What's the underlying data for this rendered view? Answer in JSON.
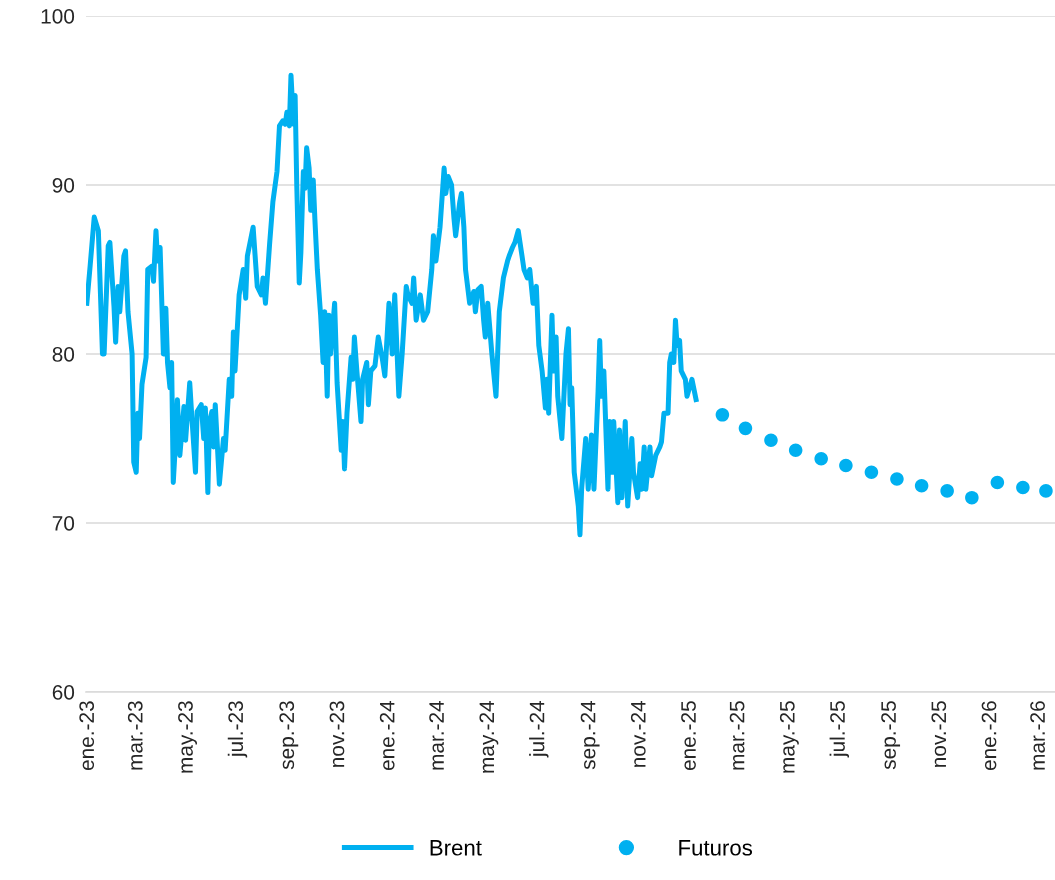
{
  "chart_data": {
    "type": "line",
    "xlim": [
      "2022-12-29",
      "2026-03-20"
    ],
    "ylim": [
      60,
      100
    ],
    "yticks": [
      60,
      70,
      80,
      90,
      100
    ],
    "xticks": [
      {
        "value": "2023-01-01",
        "label": "ene.-23"
      },
      {
        "value": "2023-03-01",
        "label": "mar.-23"
      },
      {
        "value": "2023-05-01",
        "label": "may.-23"
      },
      {
        "value": "2023-07-01",
        "label": "jul.-23"
      },
      {
        "value": "2023-09-01",
        "label": "sep.-23"
      },
      {
        "value": "2023-11-01",
        "label": "nov.-23"
      },
      {
        "value": "2024-01-01",
        "label": "ene.-24"
      },
      {
        "value": "2024-03-01",
        "label": "mar.-24"
      },
      {
        "value": "2024-05-01",
        "label": "may.-24"
      },
      {
        "value": "2024-07-01",
        "label": "jul.-24"
      },
      {
        "value": "2024-09-01",
        "label": "sep.-24"
      },
      {
        "value": "2024-11-01",
        "label": "nov.-24"
      },
      {
        "value": "2025-01-01",
        "label": "ene.-25"
      },
      {
        "value": "2025-03-01",
        "label": "mar.-25"
      },
      {
        "value": "2025-05-01",
        "label": "may.-25"
      },
      {
        "value": "2025-07-01",
        "label": "jul.-25"
      },
      {
        "value": "2025-09-01",
        "label": "sep.-25"
      },
      {
        "value": "2025-11-01",
        "label": "nov.-25"
      },
      {
        "value": "2026-01-01",
        "label": "ene.-26"
      },
      {
        "value": "2026-03-01",
        "label": "mar.-26"
      }
    ],
    "grid": "y",
    "legend": "bottom",
    "series": [
      {
        "name": "Brent",
        "color": "#00b0f0",
        "line_style": "solid",
        "marker": "none",
        "x": [
          "2022-12-30",
          "2023-01-03",
          "2023-01-08",
          "2023-01-13",
          "2023-01-18",
          "2023-01-20",
          "2023-01-25",
          "2023-01-27",
          "2023-02-01",
          "2023-02-03",
          "2023-02-06",
          "2023-02-08",
          "2023-02-13",
          "2023-02-15",
          "2023-02-18",
          "2023-02-23",
          "2023-02-25",
          "2023-02-28",
          "2023-03-02",
          "2023-03-04",
          "2023-03-07",
          "2023-03-12",
          "2023-03-14",
          "2023-03-19",
          "2023-03-21",
          "2023-03-24",
          "2023-03-26",
          "2023-03-29",
          "2023-04-02",
          "2023-04-05",
          "2023-04-07",
          "2023-04-10",
          "2023-04-12",
          "2023-04-14",
          "2023-04-17",
          "2023-04-19",
          "2023-04-22",
          "2023-04-27",
          "2023-04-29",
          "2023-05-04",
          "2023-05-06",
          "2023-05-11",
          "2023-05-13",
          "2023-05-18",
          "2023-05-21",
          "2023-05-23",
          "2023-05-26",
          "2023-05-28",
          "2023-05-31",
          "2023-06-02",
          "2023-06-04",
          "2023-06-09",
          "2023-06-14",
          "2023-06-16",
          "2023-06-21",
          "2023-06-24",
          "2023-06-26",
          "2023-06-28",
          "2023-07-03",
          "2023-07-08",
          "2023-07-11",
          "2023-07-13",
          "2023-07-20",
          "2023-07-25",
          "2023-07-30",
          "2023-08-01",
          "2023-08-04",
          "2023-08-09",
          "2023-08-13",
          "2023-08-18",
          "2023-08-21",
          "2023-08-25",
          "2023-08-28",
          "2023-08-30",
          "2023-09-02",
          "2023-09-04",
          "2023-09-07",
          "2023-09-09",
          "2023-09-11",
          "2023-09-14",
          "2023-09-16",
          "2023-09-19",
          "2023-09-21",
          "2023-09-23",
          "2023-09-26",
          "2023-09-28",
          "2023-10-01",
          "2023-10-03",
          "2023-10-06",
          "2023-10-10",
          "2023-10-13",
          "2023-10-15",
          "2023-10-18",
          "2023-10-20",
          "2023-10-22",
          "2023-10-27",
          "2023-10-30",
          "2023-11-04",
          "2023-11-06",
          "2023-11-08",
          "2023-11-11",
          "2023-11-16",
          "2023-11-18",
          "2023-11-20",
          "2023-11-23",
          "2023-11-28",
          "2023-11-30",
          "2023-12-05",
          "2023-12-07",
          "2023-12-10",
          "2023-12-15",
          "2023-12-19",
          "2023-12-24",
          "2023-12-27",
          "2024-01-01",
          "2024-01-05",
          "2024-01-08",
          "2024-01-13",
          "2024-01-17",
          "2024-01-22",
          "2024-01-24",
          "2024-01-29",
          "2024-01-31",
          "2024-02-03",
          "2024-02-08",
          "2024-02-12",
          "2024-02-17",
          "2024-02-22",
          "2024-02-24",
          "2024-02-27",
          "2024-03-03",
          "2024-03-08",
          "2024-03-10",
          "2024-03-13",
          "2024-03-17",
          "2024-03-20",
          "2024-03-22",
          "2024-03-27",
          "2024-03-29",
          "2024-04-01",
          "2024-04-03",
          "2024-04-08",
          "2024-04-13",
          "2024-04-15",
          "2024-04-18",
          "2024-04-22",
          "2024-04-25",
          "2024-04-27",
          "2024-04-30",
          "2024-05-05",
          "2024-05-10",
          "2024-05-14",
          "2024-05-19",
          "2024-05-24",
          "2024-05-26",
          "2024-05-30",
          "2024-06-02",
          "2024-06-06",
          "2024-06-10",
          "2024-06-13",
          "2024-06-17",
          "2024-06-20",
          "2024-06-24",
          "2024-06-28",
          "2024-07-01",
          "2024-07-05",
          "2024-07-09",
          "2024-07-11",
          "2024-07-13",
          "2024-07-17",
          "2024-07-19",
          "2024-07-22",
          "2024-07-24",
          "2024-07-29",
          "2024-08-03",
          "2024-08-06",
          "2024-08-08",
          "2024-08-10",
          "2024-08-13",
          "2024-08-18",
          "2024-08-20",
          "2024-08-22",
          "2024-08-27",
          "2024-08-30",
          "2024-09-03",
          "2024-09-06",
          "2024-09-11",
          "2024-09-13",
          "2024-09-15",
          "2024-09-18",
          "2024-09-23",
          "2024-09-25",
          "2024-09-28",
          "2024-09-30",
          "2024-10-05",
          "2024-10-07",
          "2024-10-10",
          "2024-10-14",
          "2024-10-17",
          "2024-10-22",
          "2024-10-24",
          "2024-10-29",
          "2024-11-01",
          "2024-11-03",
          "2024-11-06",
          "2024-11-08",
          "2024-11-13",
          "2024-11-15",
          "2024-11-20",
          "2024-11-25",
          "2024-11-27",
          "2024-11-30",
          "2024-12-05",
          "2024-12-07",
          "2024-12-09",
          "2024-12-12",
          "2024-12-14",
          "2024-12-16",
          "2024-12-19",
          "2024-12-21",
          "2024-12-26",
          "2024-12-28",
          "2025-01-03",
          "2025-01-08"
        ],
        "values": [
          83.0,
          85.2,
          88.1,
          87.3,
          80.0,
          80.0,
          86.4,
          86.6,
          82.8,
          80.7,
          84.0,
          82.5,
          85.8,
          86.1,
          82.5,
          80.0,
          73.6,
          73.0,
          76.5,
          75.0,
          78.2,
          79.8,
          85.0,
          85.2,
          84.3,
          87.3,
          85.5,
          86.3,
          80.0,
          82.7,
          79.5,
          78.0,
          79.5,
          72.4,
          75.0,
          77.3,
          74.0,
          76.9,
          74.9,
          78.3,
          76.7,
          73.0,
          76.6,
          77.0,
          75.0,
          76.8,
          71.8,
          76.0,
          76.6,
          74.5,
          77.0,
          72.3,
          75.0,
          74.3,
          78.5,
          77.5,
          81.3,
          79.0,
          83.5,
          85.0,
          83.3,
          85.8,
          87.5,
          84.0,
          83.5,
          84.5,
          83.0,
          86.5,
          89.0,
          90.8,
          93.5,
          93.8,
          93.6,
          94.3,
          93.5,
          96.5,
          93.6,
          95.3,
          90.0,
          84.2,
          86.0,
          90.8,
          89.8,
          92.2,
          91.0,
          88.5,
          90.3,
          88.0,
          85.0,
          82.3,
          79.5,
          82.5,
          77.5,
          82.3,
          80.0,
          83.0,
          78.3,
          74.3,
          76.0,
          73.2,
          76.5,
          79.8,
          78.5,
          81.0,
          79.0,
          76.0,
          78.5,
          79.5,
          77.0,
          79.0,
          79.3,
          81.0,
          79.7,
          78.7,
          83.0,
          80.0,
          83.5,
          77.5,
          80.0,
          84.0,
          83.5,
          83.0,
          84.5,
          82.0,
          83.5,
          82.0,
          82.5,
          85.0,
          87.0,
          85.5,
          87.5,
          91.0,
          89.5,
          90.5,
          90.0,
          88.0,
          87.0,
          89.0,
          89.5,
          87.5,
          85.0,
          83.0,
          83.7,
          82.5,
          83.8,
          84.0,
          82.0,
          81.0,
          83.0,
          80.0,
          77.5,
          82.5,
          84.5,
          85.5,
          85.8,
          86.3,
          86.6,
          87.3,
          86.0,
          85.0,
          84.5,
          85.0,
          83.0,
          84.0,
          80.5,
          79.0,
          76.8,
          78.5,
          76.5,
          82.3,
          79.0,
          81.0,
          77.5,
          75.0,
          80.0,
          81.5,
          77.0,
          78.0,
          73.0,
          71.0,
          69.3,
          72.0,
          75.0,
          72.0,
          75.2,
          72.0,
          77.8,
          80.8,
          77.5,
          79.0,
          72.0,
          76.0,
          73.0,
          76.0,
          71.2,
          75.5,
          71.5,
          76.0,
          71.0,
          75.0,
          73.0,
          71.5,
          73.5,
          72.0,
          74.5,
          72.0,
          74.5,
          72.8,
          74.0,
          74.5,
          74.8,
          76.5,
          76.5,
          79.5,
          80.0,
          79.5,
          82.0,
          80.5,
          80.8,
          79.0,
          78.5,
          77.5,
          78.5,
          77.3
        ]
      },
      {
        "name": "Futuros",
        "type": "scatter",
        "color": "#00b0f0",
        "marker": "circle",
        "x": [
          "2025-02-09",
          "2025-03-09",
          "2025-04-09",
          "2025-05-09",
          "2025-06-09",
          "2025-07-09",
          "2025-08-09",
          "2025-09-09",
          "2025-10-09",
          "2025-11-09",
          "2025-12-09",
          "2026-01-09",
          "2026-02-09",
          "2026-03-09"
        ],
        "values": [
          76.4,
          75.6,
          74.9,
          74.3,
          73.8,
          73.4,
          73.0,
          72.6,
          72.2,
          71.9,
          71.5,
          72.4,
          72.1,
          71.9
        ]
      }
    ]
  }
}
